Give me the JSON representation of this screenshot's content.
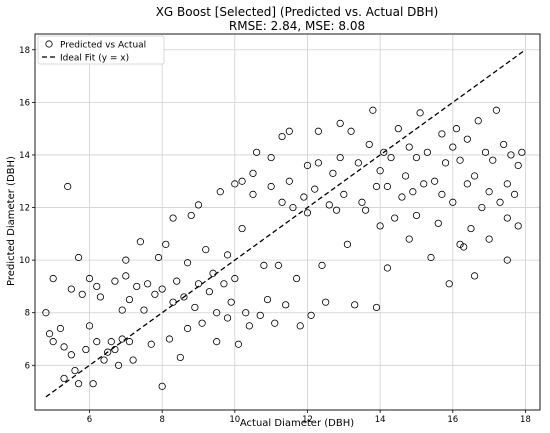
{
  "chart_data": {
    "type": "scatter",
    "title": "XG Boost [Selected] (Predicted vs. Actual DBH)",
    "subtitle": "RMSE: 2.84, MSE: 8.08",
    "xlabel": "Actual Diameter (DBH)",
    "ylabel": "Predicted Diameter (DBH)",
    "xlim": [
      4.5,
      18.4
    ],
    "ylim": [
      4.3,
      18.6
    ],
    "xticks": [
      "6",
      "8",
      "10",
      "12",
      "14",
      "16",
      "18"
    ],
    "yticks": [
      "6",
      "8",
      "10",
      "12",
      "14",
      "16",
      "18"
    ],
    "grid": true,
    "legend_position": "top-left",
    "series": [
      {
        "name": "Predicted vs Actual",
        "marker": "open-circle",
        "points": [
          [
            4.8,
            8.0
          ],
          [
            4.9,
            7.2
          ],
          [
            5.0,
            6.9
          ],
          [
            5.0,
            9.3
          ],
          [
            5.2,
            7.4
          ],
          [
            5.3,
            6.7
          ],
          [
            5.3,
            5.5
          ],
          [
            5.4,
            12.8
          ],
          [
            5.5,
            8.9
          ],
          [
            5.5,
            6.4
          ],
          [
            5.6,
            5.8
          ],
          [
            5.7,
            10.1
          ],
          [
            5.7,
            5.3
          ],
          [
            5.8,
            8.7
          ],
          [
            5.9,
            6.6
          ],
          [
            6.0,
            7.5
          ],
          [
            6.0,
            9.3
          ],
          [
            6.1,
            5.3
          ],
          [
            6.2,
            9.0
          ],
          [
            6.2,
            6.9
          ],
          [
            6.3,
            8.6
          ],
          [
            6.4,
            6.2
          ],
          [
            6.5,
            6.5
          ],
          [
            6.6,
            6.9
          ],
          [
            6.7,
            6.6
          ],
          [
            6.7,
            9.2
          ],
          [
            6.8,
            6.0
          ],
          [
            6.9,
            7.0
          ],
          [
            6.9,
            8.1
          ],
          [
            7.0,
            9.4
          ],
          [
            7.0,
            10.0
          ],
          [
            7.1,
            6.9
          ],
          [
            7.1,
            8.5
          ],
          [
            7.2,
            6.2
          ],
          [
            7.3,
            9.0
          ],
          [
            7.4,
            10.7
          ],
          [
            7.5,
            8.1
          ],
          [
            7.6,
            9.1
          ],
          [
            7.7,
            6.8
          ],
          [
            7.8,
            8.7
          ],
          [
            7.9,
            10.1
          ],
          [
            8.0,
            5.2
          ],
          [
            8.0,
            8.9
          ],
          [
            8.1,
            10.6
          ],
          [
            8.2,
            7.0
          ],
          [
            8.3,
            8.4
          ],
          [
            8.3,
            11.6
          ],
          [
            8.4,
            9.2
          ],
          [
            8.5,
            6.3
          ],
          [
            8.6,
            8.6
          ],
          [
            8.7,
            9.9
          ],
          [
            8.7,
            7.4
          ],
          [
            8.8,
            11.7
          ],
          [
            8.9,
            8.2
          ],
          [
            9.0,
            9.1
          ],
          [
            9.0,
            12.1
          ],
          [
            9.1,
            7.6
          ],
          [
            9.2,
            10.4
          ],
          [
            9.3,
            8.8
          ],
          [
            9.4,
            9.5
          ],
          [
            9.5,
            6.9
          ],
          [
            9.5,
            8.0
          ],
          [
            9.6,
            12.6
          ],
          [
            9.7,
            9.1
          ],
          [
            9.8,
            7.8
          ],
          [
            9.8,
            10.2
          ],
          [
            9.9,
            8.4
          ],
          [
            10.0,
            9.3
          ],
          [
            10.0,
            12.9
          ],
          [
            10.1,
            6.8
          ],
          [
            10.2,
            11.2
          ],
          [
            10.2,
            13.0
          ],
          [
            10.3,
            8.0
          ],
          [
            10.4,
            7.5
          ],
          [
            10.5,
            12.5
          ],
          [
            10.5,
            13.3
          ],
          [
            10.6,
            14.1
          ],
          [
            10.7,
            7.9
          ],
          [
            10.8,
            9.8
          ],
          [
            10.9,
            8.5
          ],
          [
            11.0,
            12.8
          ],
          [
            11.0,
            13.9
          ],
          [
            11.1,
            7.6
          ],
          [
            11.2,
            9.8
          ],
          [
            11.3,
            12.2
          ],
          [
            11.3,
            14.7
          ],
          [
            11.4,
            8.3
          ],
          [
            11.5,
            13.0
          ],
          [
            11.5,
            14.9
          ],
          [
            11.6,
            12.0
          ],
          [
            11.7,
            9.3
          ],
          [
            11.8,
            7.5
          ],
          [
            11.9,
            12.4
          ],
          [
            12.0,
            13.6
          ],
          [
            12.0,
            11.8
          ],
          [
            12.1,
            7.9
          ],
          [
            12.2,
            12.7
          ],
          [
            12.3,
            13.7
          ],
          [
            12.3,
            14.9
          ],
          [
            12.4,
            9.8
          ],
          [
            12.5,
            8.4
          ],
          [
            12.6,
            12.1
          ],
          [
            12.7,
            13.3
          ],
          [
            12.8,
            11.9
          ],
          [
            12.9,
            15.2
          ],
          [
            12.9,
            13.9
          ],
          [
            13.0,
            12.5
          ],
          [
            13.1,
            10.6
          ],
          [
            13.2,
            14.9
          ],
          [
            13.3,
            8.3
          ],
          [
            13.4,
            13.7
          ],
          [
            13.5,
            12.2
          ],
          [
            13.6,
            11.9
          ],
          [
            13.7,
            14.4
          ],
          [
            13.8,
            15.7
          ],
          [
            13.9,
            12.8
          ],
          [
            13.9,
            8.2
          ],
          [
            14.0,
            13.4
          ],
          [
            14.0,
            11.3
          ],
          [
            14.1,
            14.1
          ],
          [
            14.2,
            9.7
          ],
          [
            14.2,
            12.8
          ],
          [
            14.3,
            13.9
          ],
          [
            14.4,
            11.6
          ],
          [
            14.5,
            15.0
          ],
          [
            14.6,
            12.4
          ],
          [
            14.7,
            13.2
          ],
          [
            14.8,
            14.3
          ],
          [
            14.8,
            10.8
          ],
          [
            14.9,
            12.6
          ],
          [
            15.0,
            13.9
          ],
          [
            15.0,
            11.7
          ],
          [
            15.1,
            15.6
          ],
          [
            15.2,
            12.9
          ],
          [
            15.3,
            14.1
          ],
          [
            15.4,
            10.1
          ],
          [
            15.5,
            13.0
          ],
          [
            15.6,
            11.4
          ],
          [
            15.7,
            14.8
          ],
          [
            15.7,
            12.5
          ],
          [
            15.8,
            13.7
          ],
          [
            15.9,
            9.1
          ],
          [
            16.0,
            14.3
          ],
          [
            16.0,
            12.2
          ],
          [
            16.1,
            15.0
          ],
          [
            16.2,
            13.8
          ],
          [
            16.3,
            10.5
          ],
          [
            16.4,
            12.9
          ],
          [
            16.4,
            14.6
          ],
          [
            16.5,
            11.2
          ],
          [
            16.6,
            13.2
          ],
          [
            16.7,
            15.3
          ],
          [
            16.8,
            12.0
          ],
          [
            16.9,
            14.1
          ],
          [
            17.0,
            10.8
          ],
          [
            17.0,
            12.6
          ],
          [
            17.1,
            13.8
          ],
          [
            17.2,
            15.7
          ],
          [
            17.3,
            12.2
          ],
          [
            17.4,
            14.4
          ],
          [
            17.5,
            11.6
          ],
          [
            17.5,
            12.9
          ],
          [
            17.6,
            14.0
          ],
          [
            17.7,
            12.5
          ],
          [
            17.8,
            13.6
          ],
          [
            17.8,
            11.3
          ],
          [
            17.9,
            14.1
          ],
          [
            17.5,
            10.0
          ],
          [
            16.6,
            9.4
          ],
          [
            16.2,
            10.6
          ]
        ]
      },
      {
        "name": "Ideal Fit (y = x)",
        "style": "dashed",
        "points": [
          [
            4.8,
            4.8
          ],
          [
            18.0,
            18.0
          ]
        ]
      }
    ]
  }
}
